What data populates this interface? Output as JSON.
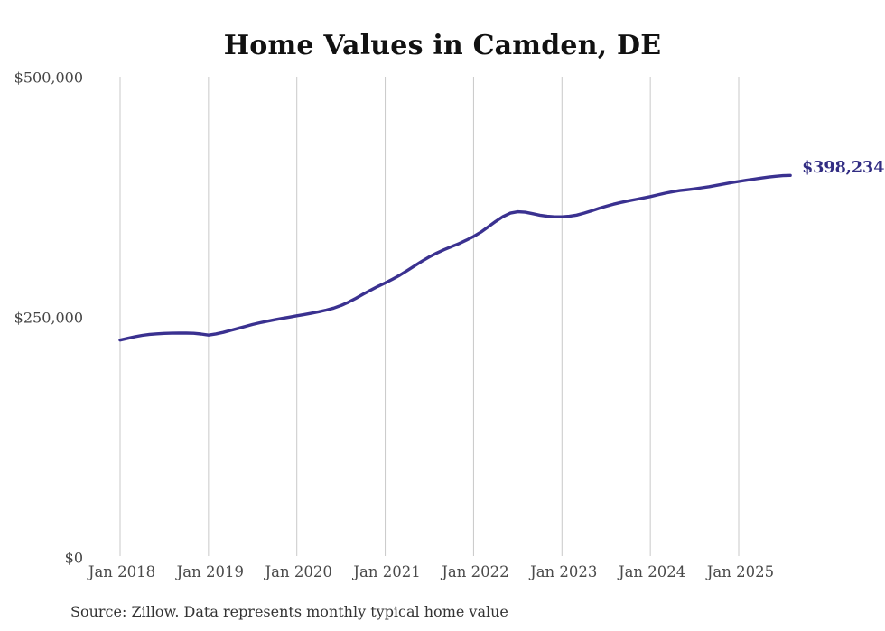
{
  "title": "Home Values in Camden, DE",
  "end_label": "$398,234",
  "source_note": "Source: Zillow. Data represents monthly typical home value",
  "colors": {
    "line": "#3a3190",
    "end_label": "#322d83",
    "grid": "#c9c9c9",
    "title": "#111111",
    "axis_text": "#4a4a4a",
    "source_text": "#333333",
    "background": "#ffffff"
  },
  "chart_data": {
    "type": "line",
    "title": "Home Values in Camden, DE",
    "x_frequency": "monthly",
    "x_start": "2018-01",
    "x_end": "2025-08",
    "x_tick_labels": [
      "Jan 2018",
      "Jan 2019",
      "Jan 2020",
      "Jan 2021",
      "Jan 2022",
      "Jan 2023",
      "Jan 2024",
      "Jan 2025"
    ],
    "y_ticks": [
      0,
      250000,
      500000
    ],
    "y_tick_labels": [
      "$0",
      "$250,000",
      "$500,000"
    ],
    "ylim": [
      0,
      500000
    ],
    "grid": "vertical-only",
    "legend": "none",
    "final_value": 398234,
    "final_value_label": "$398,234",
    "series": [
      {
        "name": "Monthly typical home value",
        "values": [
          226800,
          228600,
          230300,
          231700,
          232700,
          233300,
          233700,
          233900,
          234000,
          234000,
          233800,
          233100,
          232000,
          233200,
          234800,
          236800,
          238900,
          241000,
          243000,
          244800,
          246400,
          247900,
          249300,
          250700,
          252100,
          253400,
          254800,
          256300,
          258000,
          260100,
          262800,
          266200,
          270200,
          274500,
          278700,
          282600,
          286300,
          290200,
          294500,
          299200,
          304100,
          308900,
          313400,
          317400,
          320900,
          324100,
          327200,
          330700,
          334600,
          339200,
          344600,
          350300,
          355400,
          358900,
          360300,
          359900,
          358400,
          356800,
          355600,
          355100,
          355100,
          355600,
          356900,
          358900,
          361300,
          363800,
          366100,
          368200,
          370000,
          371600,
          373100,
          374600,
          376100,
          377900,
          379700,
          381200,
          382400,
          383300,
          384200,
          385300,
          386500,
          387900,
          389300,
          390700,
          391900,
          393100,
          394300,
          395400,
          396400,
          397300,
          397900,
          398234
        ]
      }
    ]
  }
}
